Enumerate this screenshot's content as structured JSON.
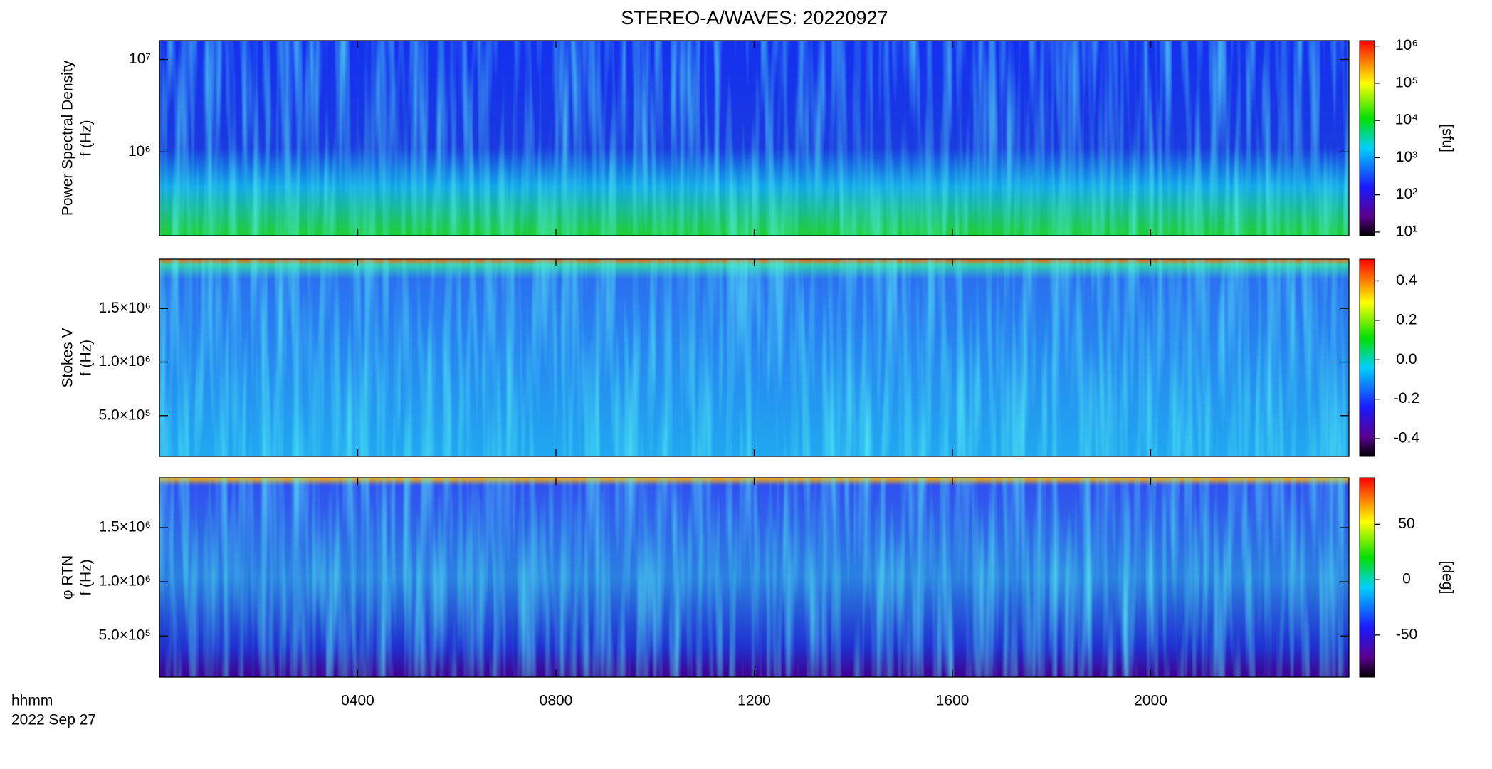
{
  "title": "STEREO-A/WAVES: 20220927",
  "x_axis": {
    "label": "hhmm",
    "date": "2022 Sep 27",
    "xlim": [
      0,
      24
    ],
    "xticks": [
      {
        "value": 4,
        "label": "0400"
      },
      {
        "value": 8,
        "label": "0800"
      },
      {
        "value": 12,
        "label": "1200"
      },
      {
        "value": 16,
        "label": "1600"
      },
      {
        "value": 20,
        "label": "2000"
      }
    ]
  },
  "chart_data": [
    {
      "type": "heatmap",
      "ylabel": [
        "Power Spectral Density",
        "f (Hz)"
      ],
      "yscale": "log",
      "ylim": [
        124000,
        16000000
      ],
      "yticks": [
        {
          "value": 1000000,
          "label": "10⁶"
        },
        {
          "value": 10000000,
          "label": "10⁷"
        }
      ],
      "colorbar": {
        "scale": "log",
        "lim": [
          8,
          1400000
        ],
        "label": "[sfu]",
        "ticks": [
          {
            "value": 10,
            "label": "10¹"
          },
          {
            "value": 100,
            "label": "10²"
          },
          {
            "value": 1000,
            "label": "10³"
          },
          {
            "value": 10000,
            "label": "10⁴"
          },
          {
            "value": 100000,
            "label": "10⁵"
          },
          {
            "value": 1000000,
            "label": "10⁶"
          }
        ]
      }
    },
    {
      "type": "heatmap",
      "ylabel": [
        "Stokes V",
        "f (Hz)"
      ],
      "yscale": "linear",
      "ylim": [
        120000,
        1960000
      ],
      "yticks": [
        {
          "value": 500000,
          "label": "5.0×10⁵"
        },
        {
          "value": 1000000,
          "label": "1.0×10⁶"
        },
        {
          "value": 1500000,
          "label": "1.5×10⁶"
        }
      ],
      "colorbar": {
        "scale": "linear",
        "lim": [
          -0.49,
          0.51
        ],
        "ticks": [
          {
            "value": -0.4,
            "label": "-0.4"
          },
          {
            "value": -0.2,
            "label": "-0.2"
          },
          {
            "value": 0,
            "label": "0.0"
          },
          {
            "value": 0.2,
            "label": "0.2"
          },
          {
            "value": 0.4,
            "label": "0.4"
          }
        ]
      }
    },
    {
      "type": "heatmap",
      "ylabel": [
        "φ RTN",
        "f (Hz)"
      ],
      "yscale": "linear",
      "ylim": [
        120000,
        1960000
      ],
      "yticks": [
        {
          "value": 500000,
          "label": "5.0×10⁵"
        },
        {
          "value": 1000000,
          "label": "1.0×10⁶"
        },
        {
          "value": 1500000,
          "label": "1.5×10⁶"
        }
      ],
      "colorbar": {
        "scale": "linear",
        "lim": [
          -88,
          92
        ],
        "label": "[deg]",
        "ticks": [
          -50,
          0,
          50
        ]
      }
    }
  ]
}
